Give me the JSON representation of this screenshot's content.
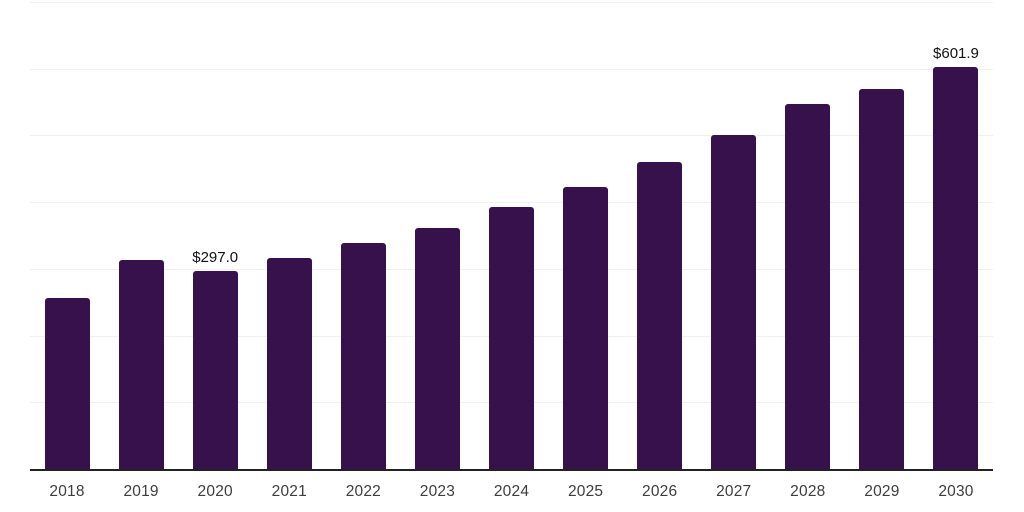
{
  "chart_data": {
    "type": "bar",
    "title": "",
    "xlabel": "",
    "ylabel": "",
    "categories": [
      "2018",
      "2019",
      "2020",
      "2021",
      "2022",
      "2023",
      "2024",
      "2025",
      "2026",
      "2027",
      "2028",
      "2029",
      "2030"
    ],
    "values": [
      257,
      314,
      297.0,
      316,
      339,
      362,
      392,
      423,
      460,
      500,
      547,
      570,
      601.9
    ],
    "data_labels": {
      "2020": "$297.0",
      "2030": "$601.9"
    },
    "ylim": [
      0,
      700
    ],
    "gridline_step": 100,
    "grid": "horizontal-only",
    "legend": "none",
    "y_axis_labels_visible": false,
    "colors": {
      "bar": "#36114B",
      "gridline": "#f0f0f2",
      "axis": "#222222",
      "value_label": "#111111",
      "tick_label": "#3d3d3d",
      "background": "#ffffff"
    }
  }
}
